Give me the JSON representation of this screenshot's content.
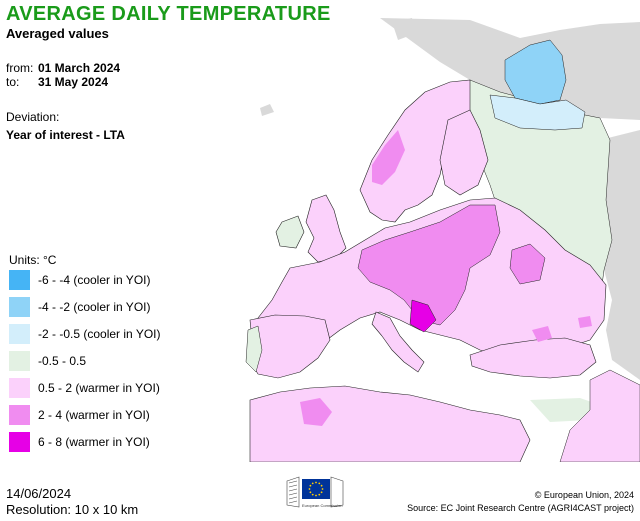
{
  "header": {
    "title": "AVERAGE DAILY TEMPERATURE",
    "subtitle": "Averaged values",
    "from_label": "from:",
    "from_value": "01 March 2024",
    "to_label": "to:",
    "to_value": "31 May 2024",
    "deviation_label": "Deviation:",
    "deviation_value": "Year of interest - LTA"
  },
  "legend": {
    "units": "Units: °C",
    "items": [
      {
        "label": "-6 - -4 (cooler in YOI)",
        "color": "#45b4f5"
      },
      {
        "label": "-4 - -2 (cooler in YOI)",
        "color": "#8fd3f7"
      },
      {
        "label": "-2 - -0.5 (cooler in YOI)",
        "color": "#d3eefb"
      },
      {
        "label": "-0.5 - 0.5",
        "color": "#e3f1e3"
      },
      {
        "label": "0.5 - 2 (warmer in YOI)",
        "color": "#fbd1fb"
      },
      {
        "label": "2 - 4 (warmer in YOI)",
        "color": "#f08cf0"
      },
      {
        "label": "6 - 8 (warmer in YOI)",
        "color": "#e600e6"
      }
    ]
  },
  "map": {
    "sea_color": "#ffffff",
    "nodata_color": "#d9d9d9",
    "border_color": "#222222"
  },
  "footer": {
    "date": "14/06/2024",
    "resolution": "Resolution: 10 x 10 km",
    "logo_caption": "European Commission",
    "copyright": "© European Union, 2024",
    "source": "Source: EC Joint Research Centre (AGRI4CAST project)"
  }
}
